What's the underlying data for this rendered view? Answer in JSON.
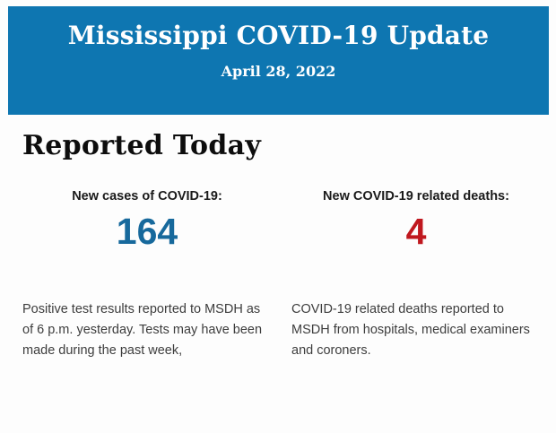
{
  "banner": {
    "title": "Mississippi COVID-19 Update",
    "date": "April 28, 2022",
    "background_color": "#0e76b1",
    "text_color": "#ffffff"
  },
  "section": {
    "heading": "Reported Today"
  },
  "stats": {
    "cases": {
      "label": "New cases of COVID-19:",
      "value": "164",
      "value_color": "#17699c",
      "description": "Positive test results reported to MSDH as of 6 p.m. yesterday. Tests may have been made during the past week,"
    },
    "deaths": {
      "label": "New COVID-19 related deaths:",
      "value": "4",
      "value_color": "#c0181f",
      "description": "COVID-19 related deaths reported to MSDH from hospitals, medical examiners and coroners."
    }
  }
}
